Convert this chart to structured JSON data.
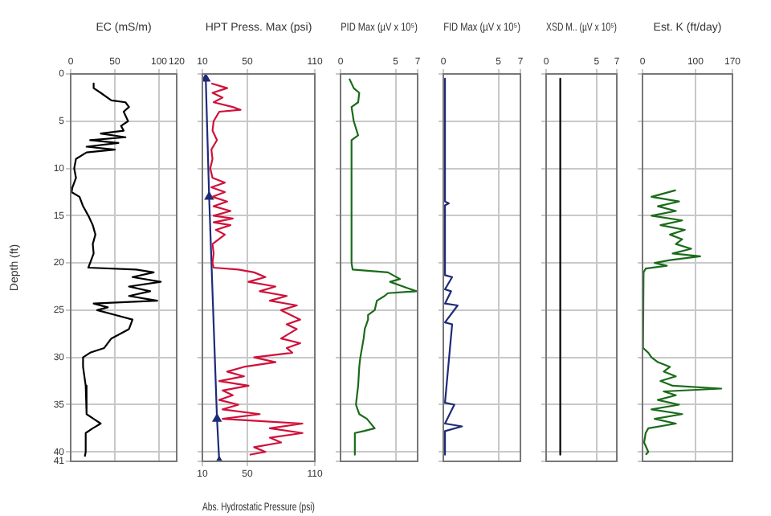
{
  "chart_data": [
    {
      "type": "line",
      "xlabel": "EC (mS/m)",
      "xlim": [
        0,
        120
      ],
      "xticks": [
        0,
        50,
        100,
        120
      ],
      "ylabel": "Depth (ft)",
      "ylim": [
        41,
        0
      ],
      "yticks": [
        0,
        5,
        10,
        15,
        20,
        25,
        30,
        35,
        40,
        41
      ],
      "grid": true,
      "series": [
        {
          "color": "#000000",
          "x": [
            26,
            26,
            34,
            46,
            62,
            66,
            60,
            65,
            57,
            60,
            34,
            62,
            22,
            54,
            18,
            50,
            18,
            6,
            4,
            6,
            2,
            1,
            10,
            14,
            20,
            25,
            28,
            25,
            26,
            22,
            20,
            74,
            94,
            70,
            102,
            66,
            90,
            66,
            98,
            26,
            42,
            30,
            50,
            70,
            66,
            46,
            38,
            22,
            14,
            14,
            17,
            18,
            26,
            34,
            25,
            17,
            17,
            16
          ],
          "values": [
            1,
            1.5,
            2,
            2.8,
            3,
            3.5,
            4,
            5,
            5.5,
            6,
            6.3,
            6.7,
            7,
            7.3,
            7.7,
            8,
            8.3,
            9,
            10,
            11,
            12,
            12.5,
            13,
            14,
            15,
            16,
            17,
            18,
            19,
            20,
            20.5,
            20.7,
            21,
            21.5,
            22,
            22.5,
            23,
            23.5,
            24,
            24.3,
            24.7,
            25,
            25.5,
            26,
            27,
            28,
            29,
            29.5,
            30,
            31,
            33,
            36,
            36.5,
            37,
            37.5,
            38,
            40,
            40.5
          ]
        }
      ]
    },
    {
      "type": "line",
      "x2label": "HPT Press. Max (psi)",
      "x2lim": [
        10,
        110
      ],
      "x2ticks": [
        10,
        50,
        110
      ],
      "xlabel": "Abs. Hydrostatic Pressure (psi)",
      "xlim": [
        10,
        110
      ],
      "xticks": [
        10,
        50,
        110
      ],
      "ylim": [
        41,
        0
      ],
      "yticks": [
        0,
        5,
        10,
        15,
        20,
        25,
        30,
        35,
        40,
        41
      ],
      "grid": true,
      "tick_labels": "x",
      "series": [
        {
          "color": "#d0103a",
          "axis": "x2",
          "x": [
            18,
            32,
            19,
            28,
            20,
            37,
            44,
            25,
            20,
            19,
            23,
            18,
            19,
            17,
            19,
            30,
            18,
            30,
            19,
            32,
            20,
            35,
            20,
            37,
            20,
            35,
            22,
            30,
            19,
            20,
            19,
            20,
            42,
            56,
            66,
            51,
            75,
            61,
            85,
            70,
            94,
            80,
            97,
            85,
            94,
            80,
            97,
            85,
            90,
            56,
            75,
            47,
            32,
            47,
            25,
            51,
            28,
            37,
            25,
            42,
            28,
            61,
            28,
            70,
            99,
            70,
            99,
            70,
            80,
            56,
            66,
            52
          ],
          "values": [
            1,
            1.5,
            2,
            2.5,
            3,
            3.5,
            3.8,
            4,
            5,
            6,
            7,
            8,
            9,
            10,
            11,
            11.5,
            12,
            12.5,
            13,
            13.5,
            14,
            14.5,
            15,
            15.3,
            15.7,
            16,
            16.5,
            17,
            18,
            19,
            20,
            20.5,
            20.7,
            21,
            21.5,
            22,
            22.5,
            23,
            23.5,
            24,
            24.5,
            25,
            26,
            26.5,
            27,
            28,
            28.5,
            29,
            29.5,
            30,
            30.5,
            31,
            31.5,
            32,
            32.5,
            33,
            33.5,
            34,
            34.5,
            35,
            35.5,
            36,
            36.5,
            36.8,
            37,
            37.5,
            38,
            38.5,
            39,
            39.5,
            40,
            40.3
          ]
        },
        {
          "color": "#1f2a7a",
          "marker": "triangle",
          "x": [
            13,
            16,
            23,
            25
          ],
          "values": [
            0.5,
            13,
            36.5,
            41
          ]
        }
      ]
    },
    {
      "type": "line",
      "xlabel": "PID Max (µV x 10⁵)",
      "xlim": [
        0,
        7
      ],
      "xticks": [
        0,
        5,
        7
      ],
      "ylim": [
        41,
        0
      ],
      "yticks": [
        0,
        5,
        10,
        15,
        20,
        25,
        30,
        35,
        40,
        41
      ],
      "grid": true,
      "tick_labels": "x",
      "series": [
        {
          "color": "#1a6b1a",
          "x": [
            0.8,
            1.2,
            1.7,
            1.6,
            1,
            1.2,
            1.6,
            1,
            1,
            1.1,
            4.3,
            5.4,
            4.5,
            6.9,
            4.3,
            4,
            3.3,
            3.1,
            2.5,
            2.5,
            2.2,
            2.1,
            1.8,
            1.7,
            1.6,
            1.4,
            1.7,
            2.4,
            3.1,
            2.1,
            1.3,
            1.3
          ],
          "values": [
            0.5,
            1.5,
            2,
            3,
            3.5,
            5,
            6.5,
            7,
            20,
            20.7,
            21,
            21.7,
            22,
            23,
            23.2,
            23.5,
            24,
            25,
            25.5,
            26,
            27,
            28,
            30,
            31,
            33,
            35,
            36,
            36.5,
            37.5,
            37.8,
            38,
            40.3
          ]
        }
      ]
    },
    {
      "type": "line",
      "xlabel": "FID Max (µV x 10⁵)",
      "xlim": [
        0,
        7
      ],
      "xticks": [
        0,
        5,
        7
      ],
      "ylim": [
        41,
        0
      ],
      "yticks": [
        0,
        5,
        10,
        15,
        20,
        25,
        30,
        35,
        40,
        41
      ],
      "grid": true,
      "tick_labels": "x",
      "series": [
        {
          "color": "#1f2a7a",
          "x": [
            0.15,
            0.15,
            0.5,
            0.15,
            0.15,
            0.8,
            0.15,
            0.7,
            0.15,
            1.3,
            0.15,
            0.8,
            0.15,
            1,
            0.15,
            1.7,
            0.15,
            0.15
          ],
          "values": [
            0.5,
            13.5,
            13.7,
            13.9,
            21.3,
            21.5,
            22.8,
            23,
            24.3,
            24.5,
            26.3,
            26.5,
            34.8,
            35,
            37,
            37.3,
            37.8,
            40.3
          ]
        }
      ]
    },
    {
      "type": "line",
      "xlabel": "XSD M.. (µV x 10⁵)",
      "xlim": [
        0,
        7
      ],
      "xticks": [
        0,
        5,
        7
      ],
      "ylim": [
        41,
        0
      ],
      "yticks": [
        0,
        5,
        10,
        15,
        20,
        25,
        30,
        35,
        40,
        41
      ],
      "grid": true,
      "tick_labels": "x",
      "series": [
        {
          "color": "#000000",
          "x": [
            1.4,
            1.4
          ],
          "values": [
            0.5,
            40.3
          ]
        }
      ]
    },
    {
      "type": "line",
      "xlabel": "Est. K (ft/day)",
      "xlim": [
        0,
        170
      ],
      "xticks": [
        0,
        100,
        170
      ],
      "ylim": [
        41,
        0
      ],
      "yticks": [
        0,
        5,
        10,
        15,
        20,
        25,
        30,
        35,
        40,
        41
      ],
      "grid": true,
      "tick_labels": "x",
      "series": [
        {
          "color": "#1a6b1a",
          "x": [
            63,
            17,
            69,
            29,
            63,
            17,
            75,
            34,
            80,
            52,
            75,
            63,
            92,
            57,
            109,
            52,
            23,
            46,
            6,
            2,
            1,
            11,
            17,
            29,
            52,
            40,
            63,
            34,
            57,
            149,
            40,
            63,
            29,
            69,
            17,
            75,
            23,
            63,
            11,
            6,
            3,
            11,
            6
          ],
          "values": [
            12.3,
            13,
            13.5,
            14,
            14.5,
            15,
            15.5,
            16,
            16.5,
            17,
            17.5,
            18,
            18.5,
            19,
            19.3,
            19.7,
            20,
            20.3,
            20.6,
            21,
            29,
            29.5,
            30,
            30.5,
            31,
            31.5,
            32,
            32.5,
            33,
            33.3,
            33.6,
            34,
            34.5,
            35,
            35.5,
            36,
            36.5,
            37,
            37.5,
            38,
            39,
            40,
            40.3
          ]
        }
      ]
    }
  ]
}
